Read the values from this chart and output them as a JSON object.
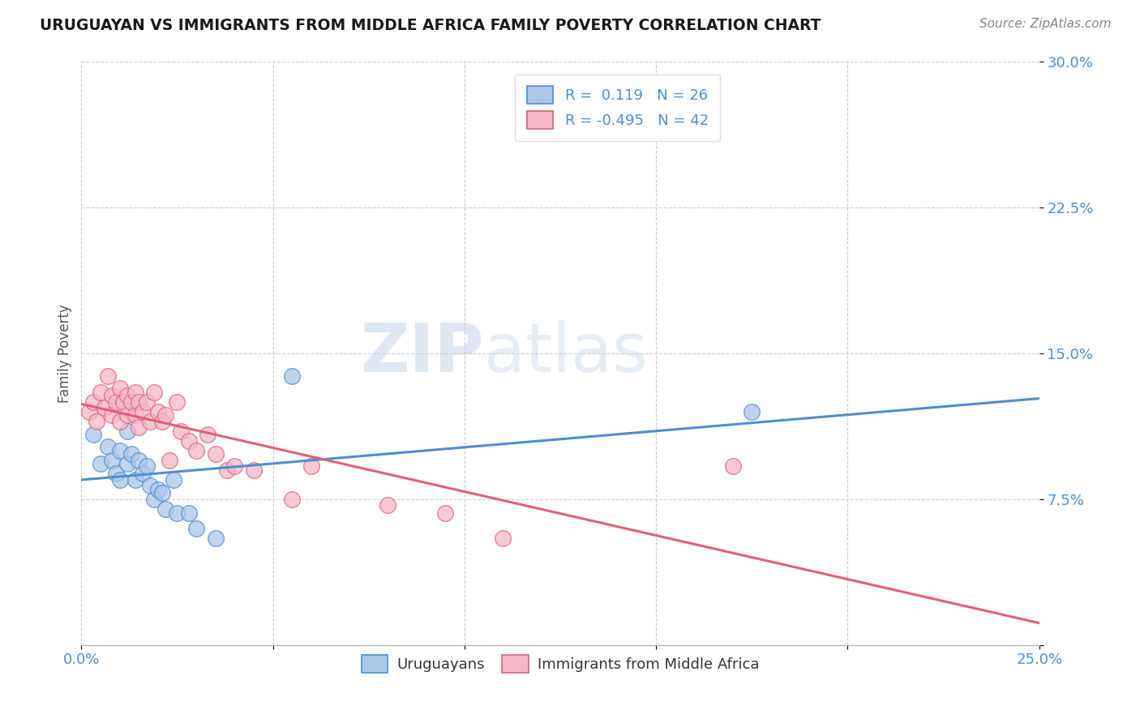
{
  "title": "URUGUAYAN VS IMMIGRANTS FROM MIDDLE AFRICA FAMILY POVERTY CORRELATION CHART",
  "source": "Source: ZipAtlas.com",
  "ylabel": "Family Poverty",
  "xlim": [
    0.0,
    0.25
  ],
  "ylim": [
    0.0,
    0.3
  ],
  "xtick_vals": [
    0.0,
    0.05,
    0.1,
    0.15,
    0.2,
    0.25
  ],
  "ytick_vals": [
    0.0,
    0.075,
    0.15,
    0.225,
    0.3
  ],
  "xtick_labels": [
    "0.0%",
    "",
    "",
    "",
    "",
    "25.0%"
  ],
  "ytick_labels": [
    "",
    "7.5%",
    "15.0%",
    "22.5%",
    "30.0%"
  ],
  "uruguayan_R": 0.119,
  "uruguayan_N": 26,
  "immigrant_R": -0.495,
  "immigrant_N": 42,
  "uruguayan_color": "#adc6e8",
  "immigrant_color": "#f5b8c8",
  "uruguayan_line_color": "#4a8fd4",
  "immigrant_line_color": "#e0607a",
  "watermark_zip": "ZIP",
  "watermark_atlas": "atlas",
  "uruguayan_scatter_x": [
    0.003,
    0.005,
    0.007,
    0.008,
    0.009,
    0.01,
    0.01,
    0.012,
    0.012,
    0.013,
    0.014,
    0.015,
    0.016,
    0.017,
    0.018,
    0.019,
    0.02,
    0.021,
    0.022,
    0.024,
    0.025,
    0.028,
    0.03,
    0.035,
    0.055,
    0.175
  ],
  "uruguayan_scatter_y": [
    0.108,
    0.093,
    0.102,
    0.095,
    0.088,
    0.1,
    0.085,
    0.11,
    0.093,
    0.098,
    0.085,
    0.095,
    0.088,
    0.092,
    0.082,
    0.075,
    0.08,
    0.078,
    0.07,
    0.085,
    0.068,
    0.068,
    0.06,
    0.055,
    0.138,
    0.12
  ],
  "immigrant_scatter_x": [
    0.002,
    0.003,
    0.004,
    0.005,
    0.006,
    0.007,
    0.008,
    0.008,
    0.009,
    0.01,
    0.01,
    0.011,
    0.012,
    0.012,
    0.013,
    0.014,
    0.014,
    0.015,
    0.015,
    0.016,
    0.017,
    0.018,
    0.019,
    0.02,
    0.021,
    0.022,
    0.023,
    0.025,
    0.026,
    0.028,
    0.03,
    0.033,
    0.035,
    0.038,
    0.04,
    0.045,
    0.055,
    0.06,
    0.08,
    0.095,
    0.11,
    0.17
  ],
  "immigrant_scatter_y": [
    0.12,
    0.125,
    0.115,
    0.13,
    0.122,
    0.138,
    0.128,
    0.118,
    0.125,
    0.132,
    0.115,
    0.125,
    0.128,
    0.118,
    0.125,
    0.13,
    0.118,
    0.125,
    0.112,
    0.12,
    0.125,
    0.115,
    0.13,
    0.12,
    0.115,
    0.118,
    0.095,
    0.125,
    0.11,
    0.105,
    0.1,
    0.108,
    0.098,
    0.09,
    0.092,
    0.09,
    0.075,
    0.092,
    0.072,
    0.068,
    0.055,
    0.092
  ]
}
